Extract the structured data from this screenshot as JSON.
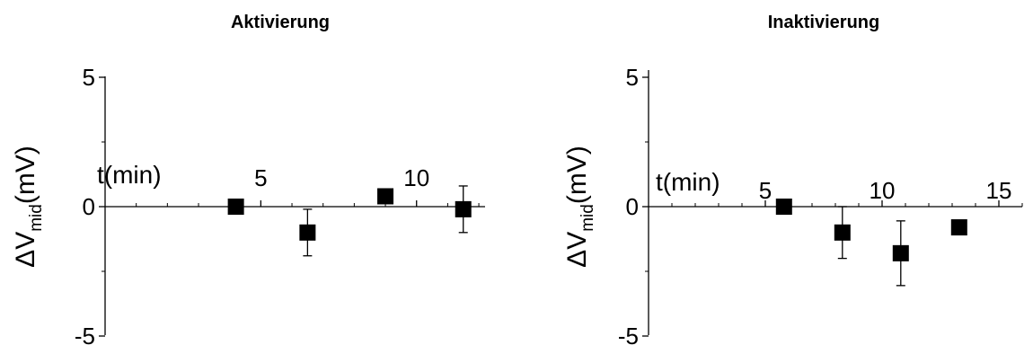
{
  "chart_data": [
    {
      "type": "scatter",
      "title": "Aktivierung",
      "xlabel": "t(min)",
      "ylabel": {
        "prefix": "ΔV",
        "subscript": "mid",
        "suffix": "(mV)"
      },
      "xlim": [
        0,
        12.2
      ],
      "ylim": [
        -5,
        5
      ],
      "xticks": [
        5,
        10
      ],
      "yticks": [
        5,
        0,
        -5
      ],
      "grid": false,
      "series": [
        {
          "x": [
            4.2,
            6.5,
            9.0,
            11.5
          ],
          "y": [
            0,
            -1.0,
            0.4,
            -0.1
          ],
          "err": [
            0,
            0.9,
            0,
            0.9
          ]
        }
      ]
    },
    {
      "type": "scatter",
      "title": "Inaktivierung",
      "xlabel": "t(min)",
      "ylabel": {
        "prefix": "ΔV",
        "subscript": "mid",
        "suffix": "(mV)"
      },
      "xlim": [
        0,
        16
      ],
      "ylim": [
        -5,
        5
      ],
      "xticks": [
        5,
        10,
        15
      ],
      "yticks": [
        5,
        0,
        -5
      ],
      "grid": false,
      "series": [
        {
          "x": [
            5.8,
            8.3,
            10.8,
            13.3
          ],
          "y": [
            0,
            -1.0,
            -1.8,
            -0.8
          ],
          "err": [
            0,
            1.0,
            1.25,
            0
          ]
        }
      ]
    }
  ]
}
